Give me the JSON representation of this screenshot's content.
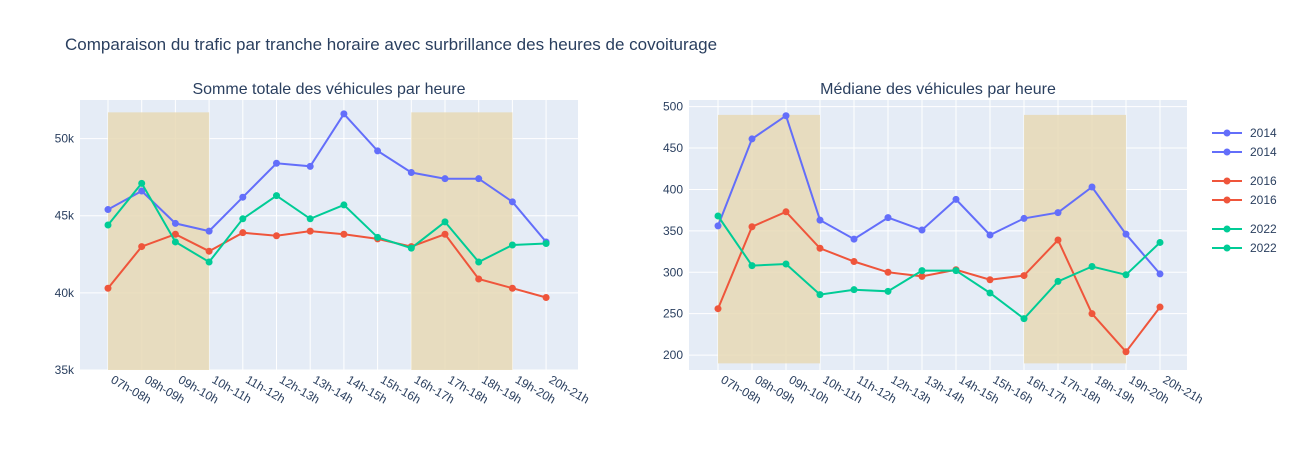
{
  "title": "Comparaison du trafic par tranche horaire avec surbrillance des heures de covoiturage",
  "colors": {
    "plot_bg": "#e5ecf6",
    "grid": "#ffffff",
    "highlight": "#e8d9b5",
    "text": "#2a3f5f",
    "series": [
      "#636efa",
      "#ef553b",
      "#00cc96"
    ]
  },
  "chart_data": [
    {
      "type": "line",
      "title": "Somme totale des véhicules par heure",
      "categories": [
        "07h-08h",
        "08h-09h",
        "09h-10h",
        "10h-11h",
        "11h-12h",
        "12h-13h",
        "13h-14h",
        "14h-15h",
        "15h-16h",
        "16h-17h",
        "17h-18h",
        "18h-19h",
        "19h-20h",
        "20h-21h"
      ],
      "ylim": [
        35000,
        52500
      ],
      "yticks": [
        35000,
        40000,
        45000,
        50000
      ],
      "ytick_labels": [
        "35k",
        "40k",
        "45k",
        "50k"
      ],
      "highlight_ranges": [
        [
          0,
          3
        ],
        [
          9,
          12
        ]
      ],
      "highlight_ylim": [
        35000,
        51700
      ],
      "series": [
        {
          "name": "2014",
          "values": [
            45400,
            46600,
            44500,
            44000,
            46200,
            48400,
            48200,
            51600,
            49200,
            47800,
            47400,
            47400,
            45900,
            43300
          ]
        },
        {
          "name": "2016",
          "values": [
            40300,
            43000,
            43800,
            42700,
            43900,
            43700,
            44000,
            43800,
            43500,
            43000,
            43800,
            40900,
            40300,
            39700
          ]
        },
        {
          "name": "2022",
          "values": [
            44400,
            47100,
            43300,
            42000,
            44800,
            46300,
            44800,
            45700,
            43600,
            42900,
            44600,
            42000,
            43100,
            43200
          ]
        }
      ]
    },
    {
      "type": "line",
      "title": "Médiane des véhicules par heure",
      "categories": [
        "07h-08h",
        "08h-09h",
        "09h-10h",
        "10h-11h",
        "11h-12h",
        "12h-13h",
        "13h-14h",
        "14h-15h",
        "15h-16h",
        "16h-17h",
        "17h-18h",
        "18h-19h",
        "19h-20h",
        "20h-21h"
      ],
      "ylim": [
        182,
        508
      ],
      "yticks": [
        200,
        250,
        300,
        350,
        400,
        450,
        500
      ],
      "ytick_labels": [
        "200",
        "250",
        "300",
        "350",
        "400",
        "450",
        "500"
      ],
      "highlight_ranges": [
        [
          0,
          3
        ],
        [
          9,
          12
        ]
      ],
      "highlight_ylim": [
        190,
        490
      ],
      "series": [
        {
          "name": "2014",
          "values": [
            356,
            461,
            489,
            363,
            340,
            366,
            351,
            388,
            345,
            365,
            372,
            403,
            346,
            298
          ]
        },
        {
          "name": "2016",
          "values": [
            256,
            355,
            373,
            329,
            313,
            300,
            295,
            303,
            291,
            296,
            339,
            250,
            204,
            258
          ]
        },
        {
          "name": "2022",
          "values": [
            368,
            308,
            310,
            273,
            279,
            277,
            302,
            302,
            275,
            244,
            289,
            307,
            297,
            336
          ]
        }
      ]
    }
  ],
  "legend": {
    "placement": "right",
    "entries": [
      "2014",
      "2014",
      "2016",
      "2016",
      "2022",
      "2022"
    ]
  }
}
